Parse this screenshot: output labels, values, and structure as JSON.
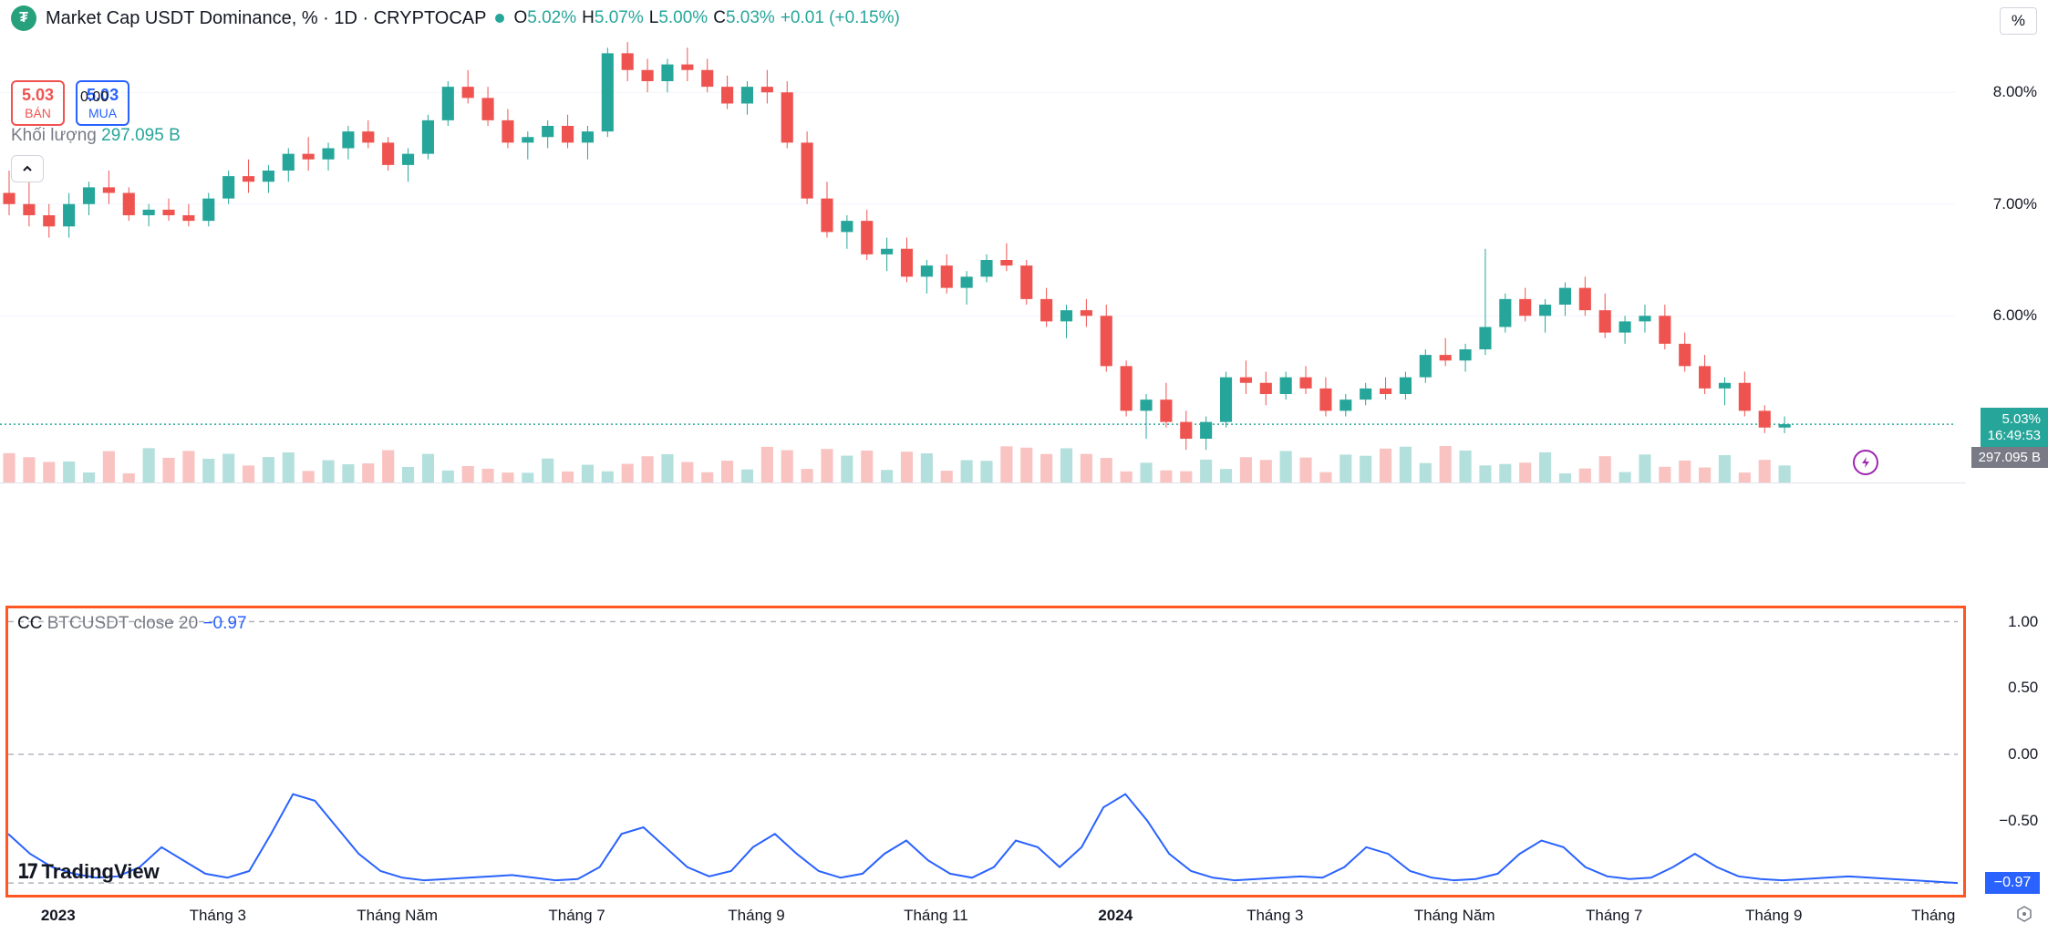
{
  "header": {
    "title": "Market Cap USDT Dominance, % · 1D · CRYPTOCAP",
    "ohlc": {
      "O": "5.02%",
      "H": "5.07%",
      "L": "5.00%",
      "C": "5.03%"
    },
    "change": "+0.01 (+0.15%)",
    "percent_btn": "%"
  },
  "badges": {
    "sell_val": "5.03",
    "sell_lbl": "BÁN",
    "buy_val": "5.03",
    "buy_lbl": "MUA",
    "zero": "0.00"
  },
  "volume": {
    "label": "Khối lượng",
    "value": "297.095 B"
  },
  "main_chart": {
    "type": "candlestick",
    "colors": {
      "up": "#26a69a",
      "down": "#ef5350",
      "grid": "#f0f3fa",
      "bg": "#ffffff"
    },
    "ylim": [
      4.5,
      8.5
    ],
    "yticks": [
      {
        "v": 8.0,
        "l": "8.00%"
      },
      {
        "v": 7.0,
        "l": "7.00%"
      },
      {
        "v": 6.0,
        "l": "6.00%"
      }
    ],
    "current_price": {
      "v": 5.03,
      "label": "5.03%",
      "time": "16:49:53"
    },
    "vol_tag": "297.095 B",
    "dotted_line_y": 5.03,
    "candles": [
      {
        "x": 0,
        "o": 7.1,
        "h": 7.3,
        "l": 6.9,
        "c": 7.0
      },
      {
        "x": 1,
        "o": 7.0,
        "h": 7.2,
        "l": 6.8,
        "c": 6.9
      },
      {
        "x": 2,
        "o": 6.9,
        "h": 7.0,
        "l": 6.7,
        "c": 6.8
      },
      {
        "x": 3,
        "o": 6.8,
        "h": 7.1,
        "l": 6.7,
        "c": 7.0
      },
      {
        "x": 4,
        "o": 7.0,
        "h": 7.2,
        "l": 6.9,
        "c": 7.15
      },
      {
        "x": 5,
        "o": 7.15,
        "h": 7.3,
        "l": 7.0,
        "c": 7.1
      },
      {
        "x": 6,
        "o": 7.1,
        "h": 7.15,
        "l": 6.85,
        "c": 6.9
      },
      {
        "x": 7,
        "o": 6.9,
        "h": 7.0,
        "l": 6.8,
        "c": 6.95
      },
      {
        "x": 8,
        "o": 6.95,
        "h": 7.05,
        "l": 6.85,
        "c": 6.9
      },
      {
        "x": 9,
        "o": 6.9,
        "h": 7.0,
        "l": 6.8,
        "c": 6.85
      },
      {
        "x": 10,
        "o": 6.85,
        "h": 7.1,
        "l": 6.8,
        "c": 7.05
      },
      {
        "x": 11,
        "o": 7.05,
        "h": 7.3,
        "l": 7.0,
        "c": 7.25
      },
      {
        "x": 12,
        "o": 7.25,
        "h": 7.4,
        "l": 7.1,
        "c": 7.2
      },
      {
        "x": 13,
        "o": 7.2,
        "h": 7.35,
        "l": 7.1,
        "c": 7.3
      },
      {
        "x": 14,
        "o": 7.3,
        "h": 7.5,
        "l": 7.2,
        "c": 7.45
      },
      {
        "x": 15,
        "o": 7.45,
        "h": 7.6,
        "l": 7.3,
        "c": 7.4
      },
      {
        "x": 16,
        "o": 7.4,
        "h": 7.55,
        "l": 7.3,
        "c": 7.5
      },
      {
        "x": 17,
        "o": 7.5,
        "h": 7.7,
        "l": 7.4,
        "c": 7.65
      },
      {
        "x": 18,
        "o": 7.65,
        "h": 7.75,
        "l": 7.5,
        "c": 7.55
      },
      {
        "x": 19,
        "o": 7.55,
        "h": 7.6,
        "l": 7.3,
        "c": 7.35
      },
      {
        "x": 20,
        "o": 7.35,
        "h": 7.5,
        "l": 7.2,
        "c": 7.45
      },
      {
        "x": 21,
        "o": 7.45,
        "h": 7.8,
        "l": 7.4,
        "c": 7.75
      },
      {
        "x": 22,
        "o": 7.75,
        "h": 8.1,
        "l": 7.7,
        "c": 8.05
      },
      {
        "x": 23,
        "o": 8.05,
        "h": 8.2,
        "l": 7.9,
        "c": 7.95
      },
      {
        "x": 24,
        "o": 7.95,
        "h": 8.05,
        "l": 7.7,
        "c": 7.75
      },
      {
        "x": 25,
        "o": 7.75,
        "h": 7.85,
        "l": 7.5,
        "c": 7.55
      },
      {
        "x": 26,
        "o": 7.55,
        "h": 7.65,
        "l": 7.4,
        "c": 7.6
      },
      {
        "x": 27,
        "o": 7.6,
        "h": 7.75,
        "l": 7.5,
        "c": 7.7
      },
      {
        "x": 28,
        "o": 7.7,
        "h": 7.8,
        "l": 7.5,
        "c": 7.55
      },
      {
        "x": 29,
        "o": 7.55,
        "h": 7.7,
        "l": 7.4,
        "c": 7.65
      },
      {
        "x": 30,
        "o": 7.65,
        "h": 8.4,
        "l": 7.6,
        "c": 8.35
      },
      {
        "x": 31,
        "o": 8.35,
        "h": 8.45,
        "l": 8.1,
        "c": 8.2
      },
      {
        "x": 32,
        "o": 8.2,
        "h": 8.3,
        "l": 8.0,
        "c": 8.1
      },
      {
        "x": 33,
        "o": 8.1,
        "h": 8.3,
        "l": 8.0,
        "c": 8.25
      },
      {
        "x": 34,
        "o": 8.25,
        "h": 8.4,
        "l": 8.1,
        "c": 8.2
      },
      {
        "x": 35,
        "o": 8.2,
        "h": 8.3,
        "l": 8.0,
        "c": 8.05
      },
      {
        "x": 36,
        "o": 8.05,
        "h": 8.15,
        "l": 7.85,
        "c": 7.9
      },
      {
        "x": 37,
        "o": 7.9,
        "h": 8.1,
        "l": 7.8,
        "c": 8.05
      },
      {
        "x": 38,
        "o": 8.05,
        "h": 8.2,
        "l": 7.9,
        "c": 8.0
      },
      {
        "x": 39,
        "o": 8.0,
        "h": 8.1,
        "l": 7.5,
        "c": 7.55
      },
      {
        "x": 40,
        "o": 7.55,
        "h": 7.65,
        "l": 7.0,
        "c": 7.05
      },
      {
        "x": 41,
        "o": 7.05,
        "h": 7.2,
        "l": 6.7,
        "c": 6.75
      },
      {
        "x": 42,
        "o": 6.75,
        "h": 6.9,
        "l": 6.6,
        "c": 6.85
      },
      {
        "x": 43,
        "o": 6.85,
        "h": 6.95,
        "l": 6.5,
        "c": 6.55
      },
      {
        "x": 44,
        "o": 6.55,
        "h": 6.7,
        "l": 6.4,
        "c": 6.6
      },
      {
        "x": 45,
        "o": 6.6,
        "h": 6.7,
        "l": 6.3,
        "c": 6.35
      },
      {
        "x": 46,
        "o": 6.35,
        "h": 6.5,
        "l": 6.2,
        "c": 6.45
      },
      {
        "x": 47,
        "o": 6.45,
        "h": 6.55,
        "l": 6.2,
        "c": 6.25
      },
      {
        "x": 48,
        "o": 6.25,
        "h": 6.4,
        "l": 6.1,
        "c": 6.35
      },
      {
        "x": 49,
        "o": 6.35,
        "h": 6.55,
        "l": 6.3,
        "c": 6.5
      },
      {
        "x": 50,
        "o": 6.5,
        "h": 6.65,
        "l": 6.4,
        "c": 6.45
      },
      {
        "x": 51,
        "o": 6.45,
        "h": 6.5,
        "l": 6.1,
        "c": 6.15
      },
      {
        "x": 52,
        "o": 6.15,
        "h": 6.25,
        "l": 5.9,
        "c": 5.95
      },
      {
        "x": 53,
        "o": 5.95,
        "h": 6.1,
        "l": 5.8,
        "c": 6.05
      },
      {
        "x": 54,
        "o": 6.05,
        "h": 6.15,
        "l": 5.9,
        "c": 6.0
      },
      {
        "x": 55,
        "o": 6.0,
        "h": 6.1,
        "l": 5.5,
        "c": 5.55
      },
      {
        "x": 56,
        "o": 5.55,
        "h": 5.6,
        "l": 5.1,
        "c": 5.15
      },
      {
        "x": 57,
        "o": 5.15,
        "h": 5.3,
        "l": 4.9,
        "c": 5.25
      },
      {
        "x": 58,
        "o": 5.25,
        "h": 5.4,
        "l": 5.0,
        "c": 5.05
      },
      {
        "x": 59,
        "o": 5.05,
        "h": 5.15,
        "l": 4.8,
        "c": 4.9
      },
      {
        "x": 60,
        "o": 4.9,
        "h": 5.1,
        "l": 4.8,
        "c": 5.05
      },
      {
        "x": 61,
        "o": 5.05,
        "h": 5.5,
        "l": 5.0,
        "c": 5.45
      },
      {
        "x": 62,
        "o": 5.45,
        "h": 5.6,
        "l": 5.3,
        "c": 5.4
      },
      {
        "x": 63,
        "o": 5.4,
        "h": 5.5,
        "l": 5.2,
        "c": 5.3
      },
      {
        "x": 64,
        "o": 5.3,
        "h": 5.5,
        "l": 5.25,
        "c": 5.45
      },
      {
        "x": 65,
        "o": 5.45,
        "h": 5.55,
        "l": 5.3,
        "c": 5.35
      },
      {
        "x": 66,
        "o": 5.35,
        "h": 5.45,
        "l": 5.1,
        "c": 5.15
      },
      {
        "x": 67,
        "o": 5.15,
        "h": 5.3,
        "l": 5.1,
        "c": 5.25
      },
      {
        "x": 68,
        "o": 5.25,
        "h": 5.4,
        "l": 5.2,
        "c": 5.35
      },
      {
        "x": 69,
        "o": 5.35,
        "h": 5.45,
        "l": 5.25,
        "c": 5.3
      },
      {
        "x": 70,
        "o": 5.3,
        "h": 5.5,
        "l": 5.25,
        "c": 5.45
      },
      {
        "x": 71,
        "o": 5.45,
        "h": 5.7,
        "l": 5.4,
        "c": 5.65
      },
      {
        "x": 72,
        "o": 5.65,
        "h": 5.8,
        "l": 5.55,
        "c": 5.6
      },
      {
        "x": 73,
        "o": 5.6,
        "h": 5.75,
        "l": 5.5,
        "c": 5.7
      },
      {
        "x": 74,
        "o": 5.7,
        "h": 6.6,
        "l": 5.65,
        "c": 5.9
      },
      {
        "x": 75,
        "o": 5.9,
        "h": 6.2,
        "l": 5.85,
        "c": 6.15
      },
      {
        "x": 76,
        "o": 6.15,
        "h": 6.25,
        "l": 5.95,
        "c": 6.0
      },
      {
        "x": 77,
        "o": 6.0,
        "h": 6.15,
        "l": 5.85,
        "c": 6.1
      },
      {
        "x": 78,
        "o": 6.1,
        "h": 6.3,
        "l": 6.0,
        "c": 6.25
      },
      {
        "x": 79,
        "o": 6.25,
        "h": 6.35,
        "l": 6.0,
        "c": 6.05
      },
      {
        "x": 80,
        "o": 6.05,
        "h": 6.2,
        "l": 5.8,
        "c": 5.85
      },
      {
        "x": 81,
        "o": 5.85,
        "h": 6.0,
        "l": 5.75,
        "c": 5.95
      },
      {
        "x": 82,
        "o": 5.95,
        "h": 6.1,
        "l": 5.85,
        "c": 6.0
      },
      {
        "x": 83,
        "o": 6.0,
        "h": 6.1,
        "l": 5.7,
        "c": 5.75
      },
      {
        "x": 84,
        "o": 5.75,
        "h": 5.85,
        "l": 5.5,
        "c": 5.55
      },
      {
        "x": 85,
        "o": 5.55,
        "h": 5.65,
        "l": 5.3,
        "c": 5.35
      },
      {
        "x": 86,
        "o": 5.35,
        "h": 5.45,
        "l": 5.2,
        "c": 5.4
      },
      {
        "x": 87,
        "o": 5.4,
        "h": 5.5,
        "l": 5.1,
        "c": 5.15
      },
      {
        "x": 88,
        "o": 5.15,
        "h": 5.2,
        "l": 4.95,
        "c": 5.0
      },
      {
        "x": 89,
        "o": 5.0,
        "h": 5.1,
        "l": 4.95,
        "c": 5.03
      }
    ]
  },
  "indicator": {
    "name": "CC",
    "symbol": "BTCUSDT close 20",
    "value": "−0.97",
    "ylim": [
      -1.1,
      1.1
    ],
    "yticks": [
      {
        "v": 1.0,
        "l": "1.00"
      },
      {
        "v": 0.5,
        "l": "0.50"
      },
      {
        "v": 0.0,
        "l": "0.00"
      },
      {
        "v": -0.5,
        "l": "−0.50"
      }
    ],
    "grid_lines": [
      1.0,
      0.0,
      -0.97
    ],
    "line_color": "#2962ff",
    "tag_value": "−0.97",
    "data": [
      -0.6,
      -0.75,
      -0.85,
      -0.9,
      -0.93,
      -0.92,
      -0.85,
      -0.7,
      -0.8,
      -0.9,
      -0.93,
      -0.88,
      -0.6,
      -0.3,
      -0.35,
      -0.55,
      -0.75,
      -0.88,
      -0.93,
      -0.95,
      -0.94,
      -0.93,
      -0.92,
      -0.91,
      -0.93,
      -0.95,
      -0.94,
      -0.85,
      -0.6,
      -0.55,
      -0.7,
      -0.85,
      -0.92,
      -0.88,
      -0.7,
      -0.6,
      -0.75,
      -0.88,
      -0.93,
      -0.9,
      -0.75,
      -0.65,
      -0.8,
      -0.9,
      -0.93,
      -0.85,
      -0.65,
      -0.7,
      -0.85,
      -0.7,
      -0.4,
      -0.3,
      -0.5,
      -0.75,
      -0.88,
      -0.93,
      -0.95,
      -0.94,
      -0.93,
      -0.92,
      -0.93,
      -0.85,
      -0.7,
      -0.75,
      -0.88,
      -0.93,
      -0.95,
      -0.94,
      -0.9,
      -0.75,
      -0.65,
      -0.7,
      -0.85,
      -0.92,
      -0.94,
      -0.93,
      -0.85,
      -0.75,
      -0.85,
      -0.92,
      -0.94,
      -0.95,
      -0.94,
      -0.93,
      -0.92,
      -0.93,
      -0.94,
      -0.95,
      -0.96,
      -0.97
    ]
  },
  "time_axis": {
    "ticks": [
      {
        "x": 2,
        "l": "2023",
        "bold": true
      },
      {
        "x": 10,
        "l": "Tháng 3"
      },
      {
        "x": 19,
        "l": "Tháng Năm"
      },
      {
        "x": 28,
        "l": "Tháng 7"
      },
      {
        "x": 37,
        "l": "Tháng 9"
      },
      {
        "x": 46,
        "l": "Tháng 11"
      },
      {
        "x": 55,
        "l": "2024",
        "bold": true
      },
      {
        "x": 63,
        "l": "Tháng 3"
      },
      {
        "x": 72,
        "l": "Tháng Năm"
      },
      {
        "x": 80,
        "l": "Tháng 7"
      },
      {
        "x": 88,
        "l": "Tháng 9"
      },
      {
        "x": 96,
        "l": "Tháng"
      }
    ],
    "xrange": 98
  },
  "logo": "TradingView"
}
